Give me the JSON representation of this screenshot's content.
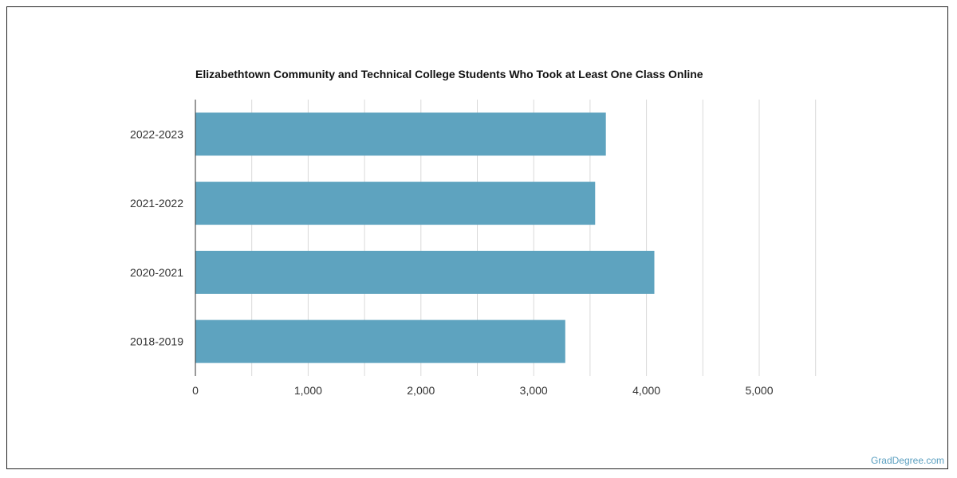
{
  "chart_data": {
    "type": "bar",
    "orientation": "horizontal",
    "title": "Elizabethtown Community and Technical College Students Who Took at Least One Class Online",
    "categories": [
      "2022-2023",
      "2021-2022",
      "2020-2021",
      "2018-2019"
    ],
    "values": [
      3640,
      3545,
      4070,
      3280
    ],
    "xlim": [
      0,
      5500
    ],
    "x_ticks": [
      0,
      1000,
      2000,
      3000,
      4000,
      5000
    ],
    "x_tick_labels": [
      "0",
      "1,000",
      "2,000",
      "3,000",
      "4,000",
      "5,000"
    ],
    "grid": true,
    "bar_color": "#5ea3bf",
    "grid_color": "#d9d9d9"
  },
  "credit": "GradDegree.com"
}
